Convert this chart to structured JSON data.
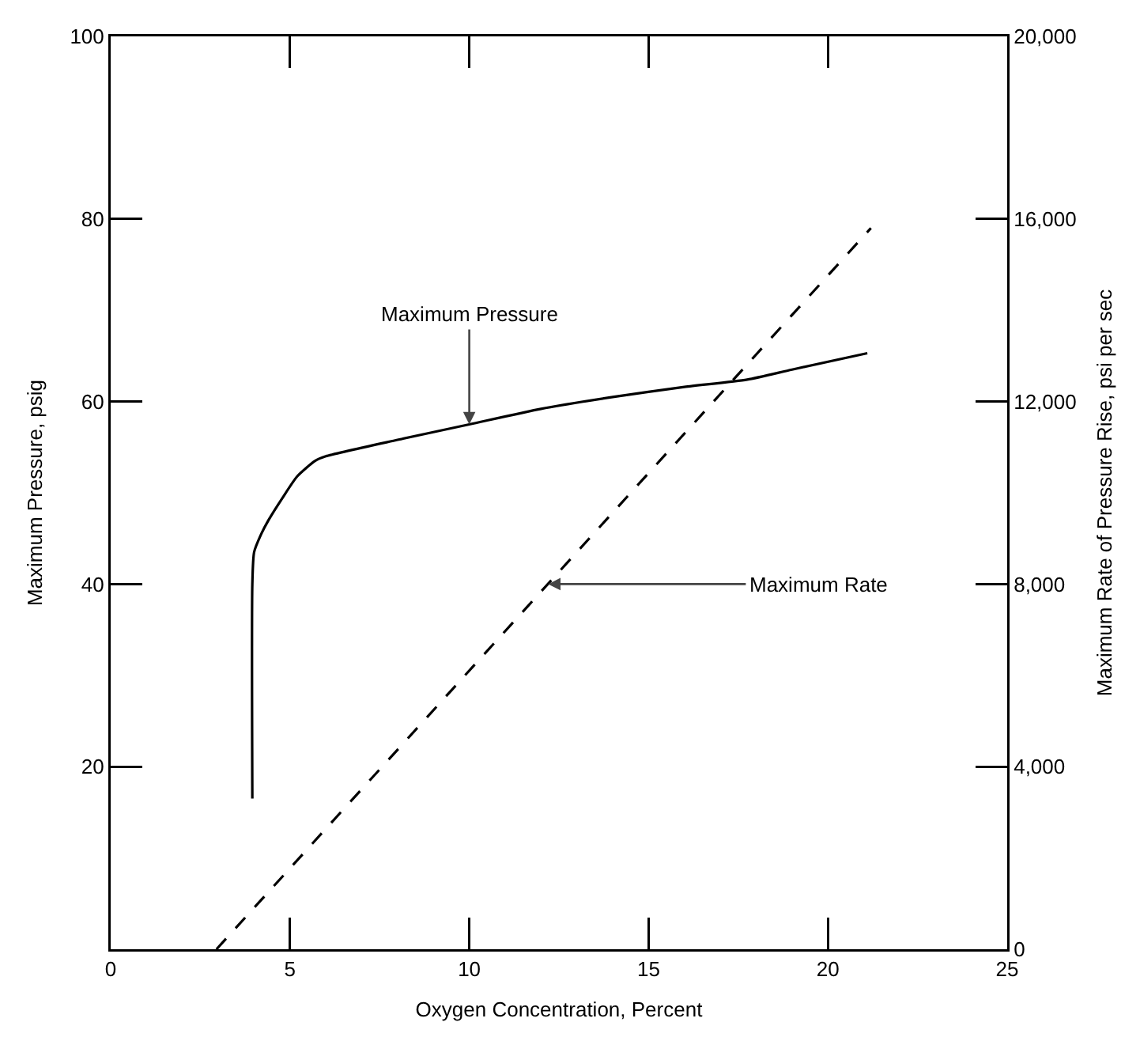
{
  "chart_data": {
    "type": "line",
    "xlabel": "Oxygen Concentration, Percent",
    "ylabel": "Maximum Pressure, psig",
    "y2label": "Maximum Rate of Pressure Rise, psi per sec",
    "xlim": [
      0,
      25
    ],
    "xticks": [
      0,
      5,
      10,
      15,
      20,
      25
    ],
    "ylim": [
      0,
      100
    ],
    "yticks": [
      20,
      40,
      60,
      80,
      100
    ],
    "y2lim": [
      0,
      20000
    ],
    "y2ticks": [
      0,
      {
        "value": 4000,
        "label": "4,000"
      },
      {
        "value": 8000,
        "label": "8,000"
      },
      {
        "value": 12000,
        "label": "12,000"
      },
      {
        "value": 16000,
        "label": "16,000"
      },
      {
        "value": 20000,
        "label": "20,000"
      }
    ],
    "series": [
      {
        "color": "#000000",
        "line_style": "solid",
        "x": [
          3.95,
          3.95,
          4.0,
          4.2,
          4.4,
          4.8,
          5.2,
          5.7,
          6.0,
          8,
          10,
          12,
          14,
          16,
          17.75,
          19,
          21.1
        ],
        "values": [
          16.5,
          40,
          43.5,
          45.5,
          47,
          49.5,
          51.8,
          53.5,
          54,
          55.8,
          57.5,
          59.2,
          60.5,
          61.6,
          62.4,
          63.5,
          65.3
        ]
      },
      {
        "color": "#000000",
        "line_style": "dashed",
        "axis": "y2",
        "x": [
          2.95,
          21.2
        ],
        "values": [
          0,
          15800
        ]
      }
    ],
    "annotations": [
      {
        "text": "Maximum Pressure",
        "x": 10,
        "y": 57.5
      },
      {
        "text": "Maximum Rate",
        "x": 12.2,
        "y": 40
      }
    ]
  }
}
